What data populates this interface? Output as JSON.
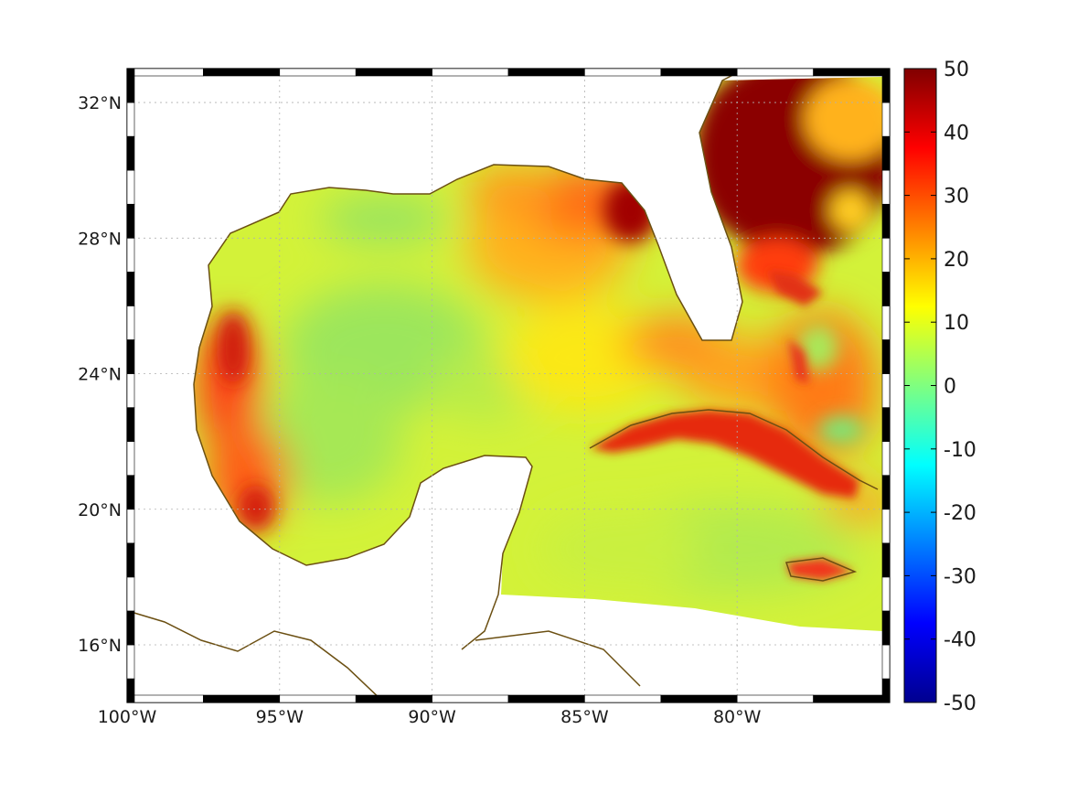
{
  "map": {
    "lon_ticks": [
      {
        "lon": -100,
        "label": "100°W"
      },
      {
        "lon": -95,
        "label": "95°W"
      },
      {
        "lon": -90,
        "label": "90°W"
      },
      {
        "lon": -85,
        "label": "85°W"
      },
      {
        "lon": -80,
        "label": "80°W"
      }
    ],
    "lat_ticks": [
      {
        "lat": 32,
        "label": "32°N"
      },
      {
        "lat": 28,
        "label": "28°N"
      },
      {
        "lat": 24,
        "label": "24°N"
      },
      {
        "lat": 20,
        "label": "20°N"
      },
      {
        "lat": 16,
        "label": "16°N"
      }
    ],
    "lon_range": [
      -100,
      -75
    ],
    "lat_range": [
      14.3,
      33
    ],
    "coast_color": "#6b4f12",
    "grid": "dotted"
  },
  "colorbar": {
    "range": [
      -50,
      50
    ],
    "ticks": [
      {
        "value": 50,
        "label": "50"
      },
      {
        "value": 40,
        "label": "40"
      },
      {
        "value": 30,
        "label": "30"
      },
      {
        "value": 20,
        "label": "20"
      },
      {
        "value": 10,
        "label": "10"
      },
      {
        "value": 0,
        "label": "0"
      },
      {
        "value": -10,
        "label": "-10"
      },
      {
        "value": -20,
        "label": "-20"
      },
      {
        "value": -30,
        "label": "-30"
      },
      {
        "value": -40,
        "label": "-40"
      },
      {
        "value": -50,
        "label": "-50"
      }
    ],
    "colormap": "jet"
  }
}
